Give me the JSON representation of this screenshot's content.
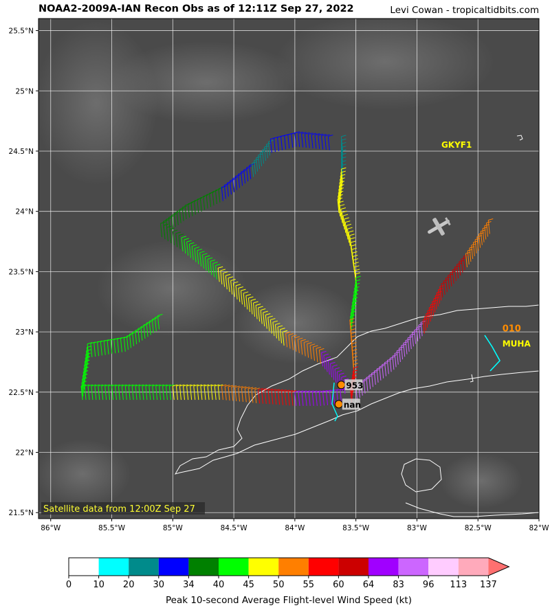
{
  "header": {
    "title": "NOAA2-2009A-IAN Recon Obs as of 12:11Z Sep 27, 2022",
    "credit": "Levi Cowan - tropicaltidbits.com"
  },
  "map": {
    "lon_range": [
      -86.1,
      -82.0
    ],
    "lat_range": [
      21.45,
      25.6
    ],
    "lat_ticks": [
      "25.5°N",
      "25°N",
      "24.5°N",
      "24°N",
      "23.5°N",
      "23°N",
      "22.5°N",
      "22°N",
      "21.5°N"
    ],
    "lat_tick_values": [
      25.5,
      25.0,
      24.5,
      24.0,
      23.5,
      23.0,
      22.5,
      22.0,
      21.5
    ],
    "lon_ticks": [
      "86°W",
      "85.5°W",
      "85°W",
      "84.5°W",
      "84°W",
      "83.5°W",
      "83°W",
      "82.5°W",
      "82°W"
    ],
    "lon_tick_values": [
      -86.0,
      -85.5,
      -85.0,
      -84.5,
      -84.0,
      -83.5,
      -83.0,
      -82.5,
      -82.0
    ],
    "satellite_note": "Satellite data from 12:00Z Sep 27",
    "stations": [
      {
        "id": "GKYF1",
        "lon": -82.8,
        "lat": 24.55
      },
      {
        "id": "MUHA",
        "lon": -82.3,
        "lat": 22.9,
        "value": "010"
      }
    ],
    "dropsondes": [
      {
        "label": "953",
        "lon": -83.62,
        "lat": 22.56
      },
      {
        "label": "nan",
        "lon": -83.64,
        "lat": 22.4
      }
    ]
  },
  "colorbar": {
    "label": "Peak 10-second Average Flight-level Wind Speed (kt)",
    "ticks": [
      "0",
      "10",
      "20",
      "30",
      "34",
      "40",
      "45",
      "50",
      "55",
      "60",
      "64",
      "83",
      "96",
      "113",
      "137"
    ],
    "colors": [
      "#ffffff",
      "#00ffff",
      "#008b8b",
      "#0000ff",
      "#008000",
      "#00ff00",
      "#ffff00",
      "#ff7f00",
      "#ff0000",
      "#cc0000",
      "#a000ff",
      "#cc66ff",
      "#ffccff",
      "#ffaabb",
      "#ff7070"
    ]
  },
  "colors": {
    "station_label": "#ffff00",
    "station_value": "#ff8c00",
    "coastline": "#ffffff",
    "sonde_marker": "#ff8c00"
  }
}
